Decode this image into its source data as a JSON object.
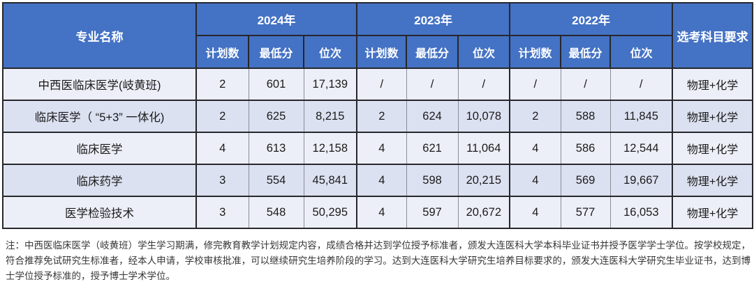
{
  "colors": {
    "header_bg": "#4472C4",
    "header_text": "#FFFFFF",
    "row_light": "#EDEFF8",
    "row_dark": "#DCE1F1",
    "border_dark": "#26272C",
    "border_light": "#8A8D96"
  },
  "table": {
    "header": {
      "major_name": "专业名称",
      "years": [
        "2024年",
        "2023年",
        "2022年"
      ],
      "subject_req": "选考科目要求",
      "sub_headers": [
        "计划数",
        "最低分",
        "位次"
      ]
    },
    "rows": [
      {
        "major": "中西医临床医学(岐黄班)",
        "values": [
          "2",
          "601",
          "17,139",
          "/",
          "/",
          "/",
          "/",
          "/",
          "/"
        ],
        "subject": "物理+化学"
      },
      {
        "major": "临床医学（ “5+3” 一体化)",
        "values": [
          "2",
          "625",
          "8,215",
          "2",
          "624",
          "10,078",
          "2",
          "588",
          "11,845"
        ],
        "subject": "物理+化学"
      },
      {
        "major": "临床医学",
        "values": [
          "4",
          "613",
          "12,158",
          "4",
          "621",
          "11,064",
          "4",
          "586",
          "12,544"
        ],
        "subject": "物理+化学"
      },
      {
        "major": "临床药学",
        "values": [
          "3",
          "554",
          "45,841",
          "4",
          "598",
          "20,215",
          "4",
          "569",
          "19,667"
        ],
        "subject": "物理+化学"
      },
      {
        "major": "医学检验技术",
        "values": [
          "3",
          "548",
          "50,295",
          "4",
          "597",
          "20,672",
          "4",
          "577",
          "16,053"
        ],
        "subject": "物理+化学"
      }
    ]
  },
  "note": "注：中西医临床医学（岐黄班）学生学习期满，修完教育教学计划规定内容，成绩合格并达到学位授予标准者，颁发大连医科大学本科毕业证书并授予医学学士学位。按学校规定，符合推荐免试研究生标准者，经本人申请，学校审核批准，可以继续研究生培养阶段的学习。达到大连医科大学研究生培养目标要求的，颁发大连医科大学研究生毕业证书，达到博士学位授予标准的，授予博士学术学位。"
}
